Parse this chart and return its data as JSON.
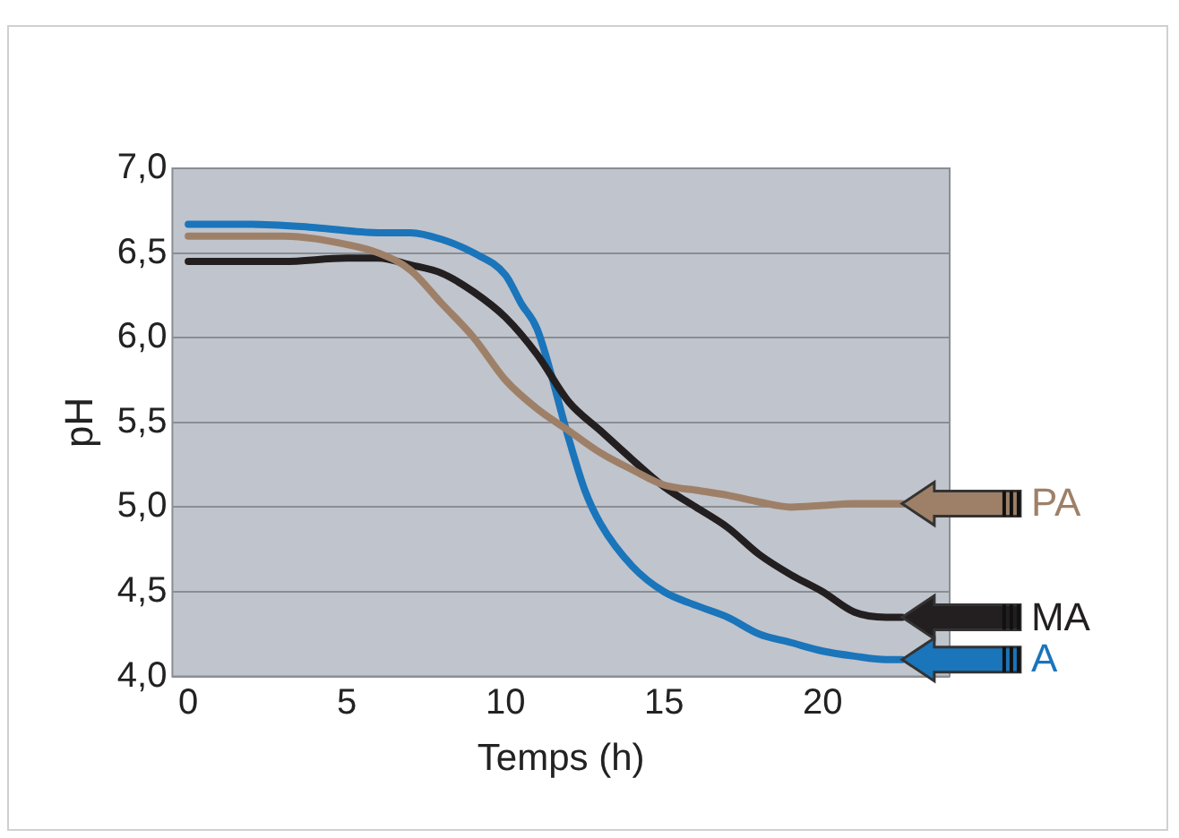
{
  "chart_data": {
    "type": "line",
    "xlabel": "Temps (h)",
    "ylabel": "pH",
    "xlim": [
      -0.5,
      24
    ],
    "xticks": [
      0,
      5,
      10,
      15,
      20
    ],
    "ylim": [
      4,
      7
    ],
    "yticks": [
      {
        "value": 4,
        "label": "4,0"
      },
      {
        "value": 4.5,
        "label": "4,5"
      },
      {
        "value": 5,
        "label": "5,0"
      },
      {
        "value": 5.5,
        "label": "5,5"
      },
      {
        "value": 6,
        "label": "6,0"
      },
      {
        "value": 6.5,
        "label": "6,5"
      },
      {
        "value": 7,
        "label": "7,0"
      }
    ],
    "grid": "y",
    "marker": "none",
    "legend": "right",
    "series": [
      {
        "name": "PA",
        "color": "#9e8068",
        "x": [
          0,
          3,
          5,
          6,
          7,
          8,
          9,
          10,
          11,
          12,
          13,
          14,
          15,
          16,
          17,
          18,
          19,
          20,
          21,
          22.5
        ],
        "values": [
          6.6,
          6.6,
          6.55,
          6.5,
          6.4,
          6.2,
          6.0,
          5.75,
          5.58,
          5.45,
          5.32,
          5.22,
          5.13,
          5.1,
          5.07,
          5.03,
          5.0,
          5.01,
          5.02,
          5.02
        ]
      },
      {
        "name": "MA",
        "color": "#231f20",
        "x": [
          0,
          3,
          5,
          6,
          7,
          8,
          9,
          10,
          11,
          12,
          13,
          14,
          15,
          16,
          17,
          18,
          19,
          20,
          21,
          22,
          22.5
        ],
        "values": [
          6.45,
          6.45,
          6.47,
          6.47,
          6.43,
          6.38,
          6.27,
          6.12,
          5.9,
          5.62,
          5.45,
          5.28,
          5.12,
          5.0,
          4.88,
          4.72,
          4.6,
          4.5,
          4.38,
          4.35,
          4.35
        ]
      },
      {
        "name": "A",
        "color": "#1a75bb",
        "x": [
          0,
          2,
          4,
          6,
          7,
          8,
          9,
          10,
          10.5,
          11,
          12,
          12.5,
          13,
          14,
          15,
          16,
          17,
          18,
          19,
          20,
          21,
          22,
          22.5
        ],
        "values": [
          6.67,
          6.67,
          6.65,
          6.62,
          6.62,
          6.58,
          6.5,
          6.37,
          6.2,
          6.05,
          5.4,
          5.1,
          4.9,
          4.65,
          4.5,
          4.42,
          4.35,
          4.25,
          4.2,
          4.15,
          4.12,
          4.1,
          4.1
        ]
      }
    ]
  }
}
